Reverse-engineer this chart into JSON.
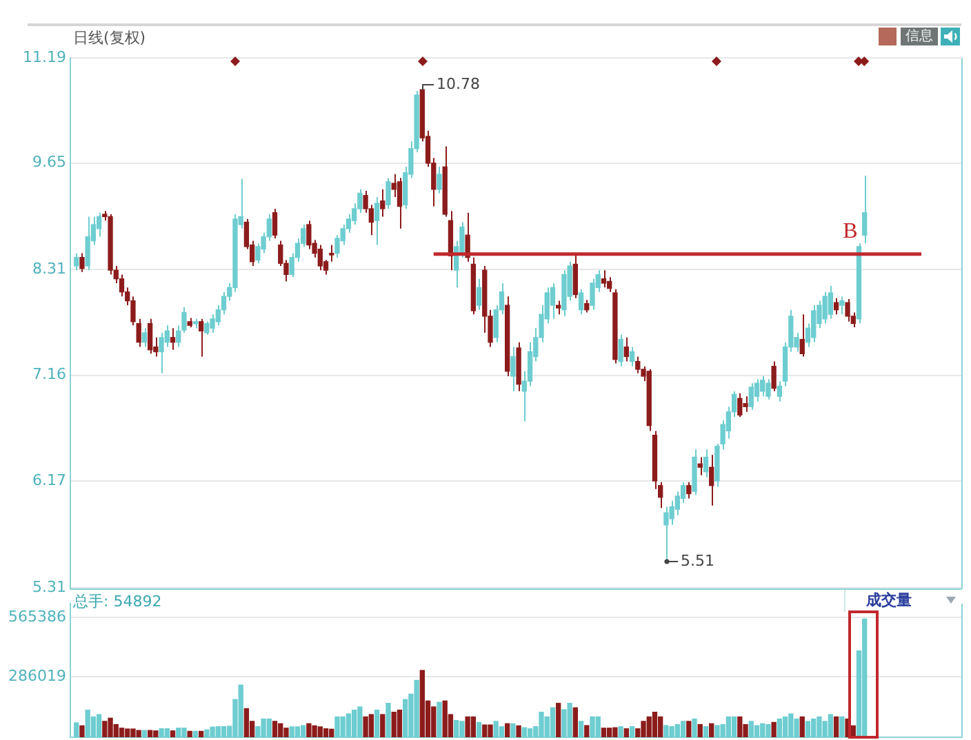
{
  "chart_data": [
    {
      "type": "candlestick",
      "title": "日线(复权)",
      "categories": [
        null,
        null,
        null,
        null,
        null,
        null,
        null,
        null,
        null,
        null,
        null,
        null,
        null,
        null,
        null,
        null,
        null,
        null,
        null,
        null,
        null,
        null,
        null,
        null,
        null,
        null,
        null,
        null,
        null,
        null,
        null,
        null,
        null,
        null,
        null,
        null,
        null,
        null,
        null,
        null,
        null,
        null,
        null,
        null,
        null,
        null,
        null,
        null,
        null,
        null,
        null,
        null,
        null,
        null,
        null,
        null,
        null,
        null,
        null,
        null,
        null,
        null,
        null,
        null,
        null,
        null,
        null,
        null,
        null,
        null,
        null,
        null,
        null,
        null,
        null,
        null,
        null,
        null,
        null,
        null,
        null,
        null,
        null,
        null,
        null,
        null,
        null,
        null,
        null,
        null,
        null,
        null,
        null,
        null,
        null,
        null,
        null,
        null,
        null,
        null,
        null,
        null,
        null,
        null,
        null,
        null,
        null,
        null,
        null,
        null,
        null,
        null,
        null,
        null,
        null,
        null,
        null,
        null,
        null,
        null,
        null,
        null,
        null,
        null,
        null,
        null,
        null,
        null,
        null,
        null,
        null,
        null,
        null,
        null,
        null,
        null,
        null,
        null,
        null,
        null
      ],
      "ohlc": [
        [
          8.35,
          8.5,
          8.3,
          8.45
        ],
        [
          8.45,
          8.5,
          8.28,
          8.32
        ],
        [
          8.35,
          8.95,
          8.3,
          8.7
        ],
        [
          8.65,
          8.95,
          8.6,
          8.85
        ],
        [
          8.8,
          9.0,
          8.7,
          8.95
        ],
        [
          8.98,
          9.02,
          8.9,
          8.95
        ],
        [
          8.95,
          8.98,
          8.25,
          8.3
        ],
        [
          8.3,
          8.35,
          8.15,
          8.2
        ],
        [
          8.2,
          8.25,
          8.0,
          8.05
        ],
        [
          8.05,
          8.1,
          7.9,
          7.95
        ],
        [
          7.95,
          8.0,
          7.68,
          7.72
        ],
        [
          7.7,
          7.75,
          7.45,
          7.5
        ],
        [
          7.5,
          7.65,
          7.45,
          7.6
        ],
        [
          7.7,
          7.75,
          7.38,
          7.42
        ],
        [
          7.45,
          7.55,
          7.35,
          7.4
        ],
        [
          7.4,
          7.6,
          7.18,
          7.55
        ],
        [
          7.5,
          7.68,
          7.45,
          7.62
        ],
        [
          7.55,
          7.65,
          7.42,
          7.5
        ],
        [
          7.5,
          7.68,
          7.45,
          7.62
        ],
        [
          7.63,
          7.88,
          7.6,
          7.82
        ],
        [
          7.72,
          7.76,
          7.66,
          7.68
        ],
        [
          7.7,
          7.75,
          7.65,
          7.72
        ],
        [
          7.72,
          7.75,
          7.35,
          7.62
        ],
        [
          7.6,
          7.72,
          7.58,
          7.7
        ],
        [
          7.65,
          7.8,
          7.6,
          7.75
        ],
        [
          7.72,
          7.9,
          7.68,
          7.85
        ],
        [
          7.85,
          8.05,
          7.8,
          8.0
        ],
        [
          8.0,
          8.15,
          7.95,
          8.1
        ],
        [
          8.1,
          8.98,
          8.05,
          8.92
        ],
        [
          8.85,
          9.44,
          8.8,
          8.95
        ],
        [
          8.88,
          8.92,
          8.55,
          8.58
        ],
        [
          8.6,
          8.65,
          8.35,
          8.4
        ],
        [
          8.42,
          8.62,
          8.38,
          8.58
        ],
        [
          8.55,
          8.75,
          8.5,
          8.7
        ],
        [
          8.7,
          8.98,
          8.65,
          8.92
        ],
        [
          9.0,
          9.05,
          8.68,
          8.72
        ],
        [
          8.6,
          8.65,
          8.35,
          8.38
        ],
        [
          8.38,
          8.42,
          8.17,
          8.25
        ],
        [
          8.25,
          8.5,
          8.22,
          8.45
        ],
        [
          8.45,
          8.68,
          8.4,
          8.62
        ],
        [
          8.62,
          8.85,
          8.58,
          8.8
        ],
        [
          8.85,
          8.9,
          8.55,
          8.6
        ],
        [
          8.62,
          8.66,
          8.45,
          8.5
        ],
        [
          8.55,
          8.6,
          8.3,
          8.35
        ],
        [
          8.4,
          8.42,
          8.25,
          8.3
        ],
        [
          8.5,
          8.6,
          8.4,
          8.48
        ],
        [
          8.5,
          8.72,
          8.45,
          8.68
        ],
        [
          8.65,
          8.85,
          8.6,
          8.8
        ],
        [
          8.8,
          8.98,
          8.75,
          8.92
        ],
        [
          8.9,
          9.12,
          8.85,
          9.05
        ],
        [
          9.05,
          9.3,
          9.0,
          9.25
        ],
        [
          9.22,
          9.28,
          9.0,
          9.05
        ],
        [
          9.05,
          9.1,
          8.72,
          8.88
        ],
        [
          8.9,
          9.2,
          8.6,
          9.12
        ],
        [
          9.15,
          9.3,
          8.95,
          9.05
        ],
        [
          9.1,
          9.45,
          9.05,
          9.4
        ],
        [
          9.38,
          9.5,
          9.2,
          9.3
        ],
        [
          9.4,
          9.45,
          8.8,
          9.08
        ],
        [
          9.1,
          9.6,
          9.05,
          9.52
        ],
        [
          9.5,
          9.95,
          9.45,
          9.85
        ],
        [
          9.85,
          10.68,
          9.8,
          10.62
        ],
        [
          10.7,
          10.78,
          9.95,
          10.0
        ],
        [
          10.02,
          10.1,
          9.6,
          9.65
        ],
        [
          9.65,
          9.72,
          9.08,
          9.3
        ],
        [
          9.3,
          9.6,
          9.25,
          9.5
        ],
        [
          9.6,
          9.88,
          8.95,
          8.98
        ],
        [
          8.9,
          9.02,
          8.3,
          8.47
        ],
        [
          8.3,
          8.65,
          8.1,
          8.58
        ],
        [
          8.5,
          8.88,
          8.45,
          8.82
        ],
        [
          8.72,
          9.0,
          8.4,
          8.45
        ],
        [
          8.37,
          8.45,
          7.8,
          7.84
        ],
        [
          7.9,
          8.2,
          7.85,
          8.1
        ],
        [
          8.3,
          8.35,
          7.6,
          7.78
        ],
        [
          7.78,
          7.85,
          7.45,
          7.5
        ],
        [
          7.55,
          7.9,
          7.5,
          7.85
        ],
        [
          7.85,
          8.15,
          7.8,
          8.05
        ],
        [
          7.9,
          8.0,
          7.15,
          7.2
        ],
        [
          7.15,
          7.45,
          7.0,
          7.35
        ],
        [
          7.44,
          7.5,
          7.0,
          7.07
        ],
        [
          7.0,
          7.2,
          6.71,
          7.1
        ],
        [
          7.1,
          7.5,
          7.05,
          7.4
        ],
        [
          7.35,
          7.65,
          7.3,
          7.55
        ],
        [
          7.55,
          7.9,
          7.5,
          7.8
        ],
        [
          7.75,
          8.1,
          7.7,
          8.04
        ],
        [
          7.9,
          8.15,
          7.75,
          8.1
        ],
        [
          7.9,
          7.95,
          7.8,
          7.87
        ],
        [
          7.85,
          8.3,
          7.78,
          8.25
        ],
        [
          8.0,
          8.4,
          7.95,
          8.35
        ],
        [
          8.37,
          8.49,
          7.98,
          8.02
        ],
        [
          7.85,
          8.08,
          7.8,
          8.04
        ],
        [
          7.92,
          7.96,
          7.82,
          7.85
        ],
        [
          7.9,
          8.2,
          7.85,
          8.15
        ],
        [
          8.1,
          8.3,
          8.05,
          8.25
        ],
        [
          8.2,
          8.3,
          8.1,
          8.15
        ],
        [
          8.17,
          8.22,
          8.05,
          8.09
        ],
        [
          8.04,
          8.08,
          7.28,
          7.32
        ],
        [
          7.3,
          7.58,
          7.25,
          7.53
        ],
        [
          7.45,
          7.55,
          7.3,
          7.35
        ],
        [
          7.3,
          7.45,
          7.25,
          7.4
        ],
        [
          7.3,
          7.35,
          7.18,
          7.22
        ],
        [
          7.22,
          7.25,
          7.1,
          7.15
        ],
        [
          7.2,
          7.22,
          6.62,
          6.67
        ],
        [
          6.58,
          6.62,
          6.1,
          6.17
        ],
        [
          6.13,
          6.16,
          5.94,
          6.03
        ],
        [
          5.8,
          5.95,
          5.51,
          5.9
        ],
        [
          5.85,
          6.0,
          5.8,
          5.95
        ],
        [
          5.93,
          6.08,
          5.88,
          6.04
        ],
        [
          6.02,
          6.16,
          5.98,
          6.13
        ],
        [
          6.13,
          6.16,
          6.02,
          6.06
        ],
        [
          6.08,
          6.45,
          6.05,
          6.38
        ],
        [
          6.32,
          6.38,
          6.22,
          6.29
        ],
        [
          6.25,
          6.45,
          6.2,
          6.38
        ],
        [
          6.29,
          6.4,
          5.96,
          6.13
        ],
        [
          6.17,
          6.5,
          6.12,
          6.48
        ],
        [
          6.5,
          6.72,
          6.45,
          6.68
        ],
        [
          6.62,
          6.85,
          6.55,
          6.8
        ],
        [
          6.8,
          7.0,
          6.75,
          6.97
        ],
        [
          6.93,
          6.98,
          6.75,
          6.77
        ],
        [
          6.88,
          6.95,
          6.8,
          6.85
        ],
        [
          6.85,
          7.08,
          6.82,
          7.04
        ],
        [
          6.95,
          7.12,
          6.9,
          7.08
        ],
        [
          7.0,
          7.15,
          6.95,
          7.11
        ],
        [
          6.95,
          7.12,
          6.92,
          7.08
        ],
        [
          7.25,
          7.3,
          7.0,
          7.03
        ],
        [
          6.95,
          7.1,
          6.9,
          7.05
        ],
        [
          7.1,
          7.5,
          7.05,
          7.45
        ],
        [
          7.45,
          7.85,
          7.4,
          7.78
        ],
        [
          7.45,
          7.6,
          7.4,
          7.55
        ],
        [
          7.53,
          7.8,
          7.35,
          7.38
        ],
        [
          7.5,
          7.7,
          7.45,
          7.65
        ],
        [
          7.55,
          7.9,
          7.5,
          7.84
        ],
        [
          7.7,
          7.95,
          7.65,
          7.9
        ],
        [
          7.75,
          8.05,
          7.7,
          8.0
        ],
        [
          7.8,
          8.12,
          7.75,
          8.04
        ],
        [
          7.93,
          7.98,
          7.8,
          7.85
        ],
        [
          7.9,
          8.0,
          7.8,
          7.95
        ],
        [
          7.93,
          7.97,
          7.72,
          7.78
        ],
        [
          7.78,
          7.82,
          7.66,
          7.7
        ],
        [
          7.75,
          8.62,
          7.7,
          8.58
        ],
        [
          8.72,
          9.48,
          8.62,
          9.0
        ]
      ],
      "colors": [
        "#6ecdd0",
        "#8c1c1c",
        "#6ecdd0",
        "#6ecdd0",
        "#6ecdd0",
        "#8c1c1c",
        "#8c1c1c",
        "#8c1c1c",
        "#8c1c1c",
        "#8c1c1c",
        "#8c1c1c",
        "#8c1c1c",
        "#6ecdd0",
        "#8c1c1c",
        "#8c1c1c",
        "#6ecdd0",
        "#6ecdd0",
        "#8c1c1c",
        "#6ecdd0",
        "#6ecdd0",
        "#8c1c1c",
        "#6ecdd0",
        "#8c1c1c",
        "#6ecdd0",
        "#6ecdd0",
        "#6ecdd0",
        "#6ecdd0",
        "#6ecdd0",
        "#6ecdd0",
        "#6ecdd0",
        "#8c1c1c",
        "#8c1c1c",
        "#6ecdd0",
        "#6ecdd0",
        "#6ecdd0",
        "#8c1c1c",
        "#8c1c1c",
        "#8c1c1c",
        "#6ecdd0",
        "#6ecdd0",
        "#6ecdd0",
        "#8c1c1c",
        "#8c1c1c",
        "#8c1c1c",
        "#8c1c1c",
        "#8c1c1c",
        "#6ecdd0",
        "#6ecdd0",
        "#6ecdd0",
        "#6ecdd0",
        "#6ecdd0",
        "#8c1c1c",
        "#8c1c1c",
        "#6ecdd0",
        "#8c1c1c",
        "#6ecdd0",
        "#8c1c1c",
        "#8c1c1c",
        "#6ecdd0",
        "#6ecdd0",
        "#6ecdd0",
        "#8c1c1c",
        "#8c1c1c",
        "#8c1c1c",
        "#6ecdd0",
        "#8c1c1c",
        "#8c1c1c",
        "#6ecdd0",
        "#6ecdd0",
        "#8c1c1c",
        "#8c1c1c",
        "#6ecdd0",
        "#8c1c1c",
        "#8c1c1c",
        "#6ecdd0",
        "#6ecdd0",
        "#8c1c1c",
        "#6ecdd0",
        "#8c1c1c",
        "#6ecdd0",
        "#6ecdd0",
        "#6ecdd0",
        "#6ecdd0",
        "#6ecdd0",
        "#6ecdd0",
        "#8c1c1c",
        "#6ecdd0",
        "#6ecdd0",
        "#8c1c1c",
        "#6ecdd0",
        "#8c1c1c",
        "#6ecdd0",
        "#6ecdd0",
        "#8c1c1c",
        "#8c1c1c",
        "#8c1c1c",
        "#6ecdd0",
        "#8c1c1c",
        "#6ecdd0",
        "#8c1c1c",
        "#8c1c1c",
        "#8c1c1c",
        "#8c1c1c",
        "#8c1c1c",
        "#6ecdd0",
        "#6ecdd0",
        "#6ecdd0",
        "#6ecdd0",
        "#8c1c1c",
        "#6ecdd0",
        "#8c1c1c",
        "#6ecdd0",
        "#8c1c1c",
        "#6ecdd0",
        "#6ecdd0",
        "#6ecdd0",
        "#6ecdd0",
        "#8c1c1c",
        "#8c1c1c",
        "#6ecdd0",
        "#6ecdd0",
        "#6ecdd0",
        "#6ecdd0",
        "#8c1c1c",
        "#6ecdd0",
        "#6ecdd0",
        "#6ecdd0",
        "#6ecdd0",
        "#8c1c1c",
        "#6ecdd0",
        "#6ecdd0",
        "#6ecdd0",
        "#6ecdd0",
        "#6ecdd0",
        "#8c1c1c",
        "#6ecdd0",
        "#8c1c1c",
        "#8c1c1c",
        "#6ecdd0",
        "#6ecdd0"
      ],
      "log": true,
      "ylim": [
        5.31,
        11.19
      ],
      "yticks": [
        5.31,
        6.17,
        7.16,
        8.31,
        9.65,
        11.19
      ],
      "grid": "y",
      "tick_labels": "y",
      "ref_lines": [
        {
          "axis": "y",
          "value": 8.49,
          "label": "B",
          "color": "#c0282d"
        }
      ],
      "annotations": [
        "信息",
        "10.78",
        "5.51"
      ]
    },
    {
      "type": "bar",
      "title": "成交量",
      "categories": [
        null,
        null,
        null,
        null,
        null,
        null,
        null,
        null,
        null,
        null,
        null,
        null,
        null,
        null,
        null,
        null,
        null,
        null,
        null,
        null,
        null,
        null,
        null,
        null,
        null,
        null,
        null,
        null,
        null,
        null,
        null,
        null,
        null,
        null,
        null,
        null,
        null,
        null,
        null,
        null,
        null,
        null,
        null,
        null,
        null,
        null,
        null,
        null,
        null,
        null,
        null,
        null,
        null,
        null,
        null,
        null,
        null,
        null,
        null,
        null,
        null,
        null,
        null,
        null,
        null,
        null,
        null,
        null,
        null,
        null,
        null,
        null,
        null,
        null,
        null,
        null,
        null,
        null,
        null,
        null,
        null,
        null,
        null,
        null,
        null,
        null,
        null,
        null,
        null,
        null,
        null,
        null,
        null,
        null,
        null,
        null,
        null,
        null,
        null,
        null,
        null,
        null,
        null,
        null,
        null,
        null,
        null,
        null,
        null,
        null,
        null,
        null,
        null,
        null,
        null,
        null,
        null,
        null,
        null,
        null,
        null,
        null,
        null,
        null,
        null,
        null,
        null,
        null,
        null,
        null,
        null,
        null,
        null,
        null,
        null,
        null,
        null,
        null,
        null,
        null
      ],
      "values": [
        68000,
        54000,
        128000,
        96000,
        107000,
        75000,
        90000,
        60000,
        43000,
        39000,
        39000,
        32000,
        32000,
        32000,
        30000,
        40000,
        40000,
        30000,
        43000,
        43000,
        28000,
        28000,
        28000,
        35000,
        48000,
        50000,
        50000,
        52000,
        178000,
        246000,
        135000,
        75000,
        50000,
        86000,
        86000,
        75000,
        64000,
        43000,
        49000,
        49000,
        55000,
        64000,
        54000,
        49000,
        40000,
        38000,
        96000,
        96000,
        110000,
        128000,
        143000,
        96000,
        107000,
        128000,
        107000,
        160000,
        118000,
        128000,
        178000,
        203000,
        268000,
        315000,
        171000,
        143000,
        165000,
        171000,
        107000,
        79000,
        75000,
        96000,
        96000,
        70000,
        58000,
        58000,
        75000,
        50000,
        64000,
        64000,
        54000,
        45000,
        40000,
        50000,
        118000,
        96000,
        139000,
        160000,
        130000,
        160000,
        139000,
        75000,
        55000,
        96000,
        96000,
        43000,
        43000,
        45000,
        50000,
        40000,
        50000,
        40000,
        75000,
        96000,
        118000,
        96000,
        55000,
        50000,
        60000,
        75000,
        75000,
        86000,
        60000,
        50000,
        64000,
        55000,
        60000,
        96000,
        96000,
        96000,
        60000,
        75000,
        55000,
        64000,
        60000,
        70000,
        86000,
        96000,
        110000,
        86000,
        96000,
        75000,
        86000,
        96000,
        75000,
        107000,
        96000,
        96000,
        86000,
        54000,
        407000,
        557000
      ],
      "colors": [
        "#6ecdd0",
        "#8c1c1c",
        "#6ecdd0",
        "#6ecdd0",
        "#6ecdd0",
        "#8c1c1c",
        "#8c1c1c",
        "#8c1c1c",
        "#8c1c1c",
        "#8c1c1c",
        "#8c1c1c",
        "#8c1c1c",
        "#6ecdd0",
        "#8c1c1c",
        "#8c1c1c",
        "#6ecdd0",
        "#6ecdd0",
        "#8c1c1c",
        "#6ecdd0",
        "#6ecdd0",
        "#8c1c1c",
        "#6ecdd0",
        "#8c1c1c",
        "#6ecdd0",
        "#6ecdd0",
        "#6ecdd0",
        "#6ecdd0",
        "#6ecdd0",
        "#6ecdd0",
        "#6ecdd0",
        "#8c1c1c",
        "#8c1c1c",
        "#6ecdd0",
        "#6ecdd0",
        "#6ecdd0",
        "#8c1c1c",
        "#8c1c1c",
        "#8c1c1c",
        "#6ecdd0",
        "#6ecdd0",
        "#6ecdd0",
        "#8c1c1c",
        "#8c1c1c",
        "#8c1c1c",
        "#8c1c1c",
        "#8c1c1c",
        "#6ecdd0",
        "#6ecdd0",
        "#6ecdd0",
        "#6ecdd0",
        "#6ecdd0",
        "#8c1c1c",
        "#8c1c1c",
        "#6ecdd0",
        "#8c1c1c",
        "#6ecdd0",
        "#8c1c1c",
        "#8c1c1c",
        "#6ecdd0",
        "#6ecdd0",
        "#6ecdd0",
        "#8c1c1c",
        "#8c1c1c",
        "#8c1c1c",
        "#6ecdd0",
        "#8c1c1c",
        "#8c1c1c",
        "#6ecdd0",
        "#6ecdd0",
        "#8c1c1c",
        "#8c1c1c",
        "#6ecdd0",
        "#8c1c1c",
        "#8c1c1c",
        "#6ecdd0",
        "#6ecdd0",
        "#8c1c1c",
        "#6ecdd0",
        "#8c1c1c",
        "#6ecdd0",
        "#6ecdd0",
        "#6ecdd0",
        "#6ecdd0",
        "#6ecdd0",
        "#6ecdd0",
        "#8c1c1c",
        "#6ecdd0",
        "#6ecdd0",
        "#8c1c1c",
        "#6ecdd0",
        "#8c1c1c",
        "#6ecdd0",
        "#6ecdd0",
        "#8c1c1c",
        "#8c1c1c",
        "#8c1c1c",
        "#6ecdd0",
        "#8c1c1c",
        "#6ecdd0",
        "#8c1c1c",
        "#8c1c1c",
        "#8c1c1c",
        "#8c1c1c",
        "#8c1c1c",
        "#6ecdd0",
        "#6ecdd0",
        "#6ecdd0",
        "#6ecdd0",
        "#8c1c1c",
        "#6ecdd0",
        "#8c1c1c",
        "#6ecdd0",
        "#8c1c1c",
        "#6ecdd0",
        "#6ecdd0",
        "#6ecdd0",
        "#6ecdd0",
        "#8c1c1c",
        "#8c1c1c",
        "#6ecdd0",
        "#6ecdd0",
        "#6ecdd0",
        "#6ecdd0",
        "#8c1c1c",
        "#6ecdd0",
        "#6ecdd0",
        "#6ecdd0",
        "#6ecdd0",
        "#8c1c1c",
        "#6ecdd0",
        "#6ecdd0",
        "#6ecdd0",
        "#6ecdd0",
        "#6ecdd0",
        "#8c1c1c",
        "#6ecdd0",
        "#8c1c1c",
        "#8c1c1c",
        "#6ecdd0",
        "#6ecdd0"
      ],
      "ylim": [
        0,
        630000
      ],
      "yticks": [
        286019,
        565386
      ],
      "grid": "y",
      "tick_labels": "y",
      "annotations": [
        "总手: 54892"
      ]
    }
  ]
}
